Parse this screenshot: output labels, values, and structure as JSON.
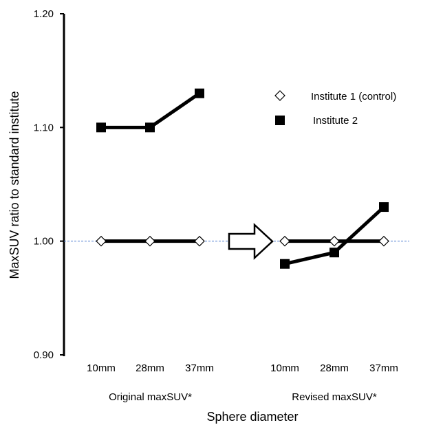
{
  "chart_data": {
    "type": "line",
    "xlabel": "Sphere diameter",
    "ylabel": "MaxSUV ratio to standard institute",
    "ylim": [
      0.9,
      1.2
    ],
    "yticks": [
      "0.90",
      "1.00",
      "1.10",
      "1.20"
    ],
    "ytick_values": [
      0.9,
      1.0,
      1.1,
      1.2
    ],
    "groups": [
      {
        "label": "Original  maxSUV*",
        "categories": [
          "10mm",
          "28mm",
          "37mm"
        ]
      },
      {
        "label": "Revised maxSUV*",
        "categories": [
          "10mm",
          "28mm",
          "37mm"
        ]
      }
    ],
    "series": [
      {
        "name": "Institute  1 (control)",
        "marker": "open-diamond",
        "values": [
          [
            1.0,
            1.0,
            1.0
          ],
          [
            1.0,
            1.0,
            1.0
          ]
        ]
      },
      {
        "name": "Institute  2",
        "marker": "filled-square",
        "values": [
          [
            1.1,
            1.1,
            1.13
          ],
          [
            0.98,
            0.99,
            1.03
          ]
        ]
      }
    ],
    "reference_line": {
      "y": 1.0,
      "style": "dashed",
      "color": "#4a7bd0"
    },
    "annotation": "arrow from original to revised",
    "legend_position": "top-right",
    "grid": false
  }
}
